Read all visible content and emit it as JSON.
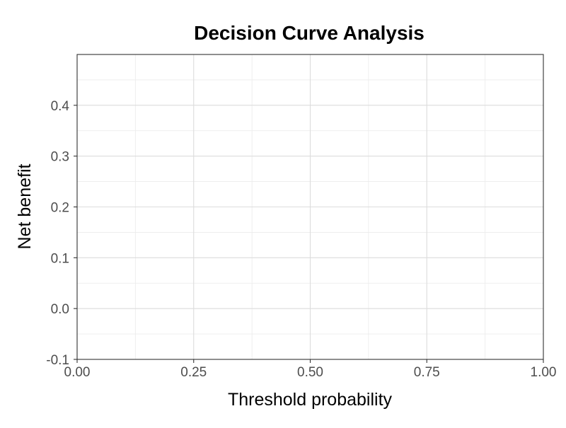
{
  "chart_data": {
    "type": "line",
    "title": "Decision Curve Analysis",
    "xlabel": "Threshold probability",
    "ylabel": "Net benefit",
    "xlim": [
      0,
      1
    ],
    "ylim": [
      -0.1,
      0.5
    ],
    "x_ticks": [
      0,
      0.25,
      0.5,
      0.75,
      1
    ],
    "x_tick_labels": [
      "0.00",
      "0.25",
      "0.50",
      "0.75",
      "1.00"
    ],
    "y_ticks": [
      -0.1,
      0,
      0.1,
      0.2,
      0.3,
      0.4
    ],
    "y_tick_labels": [
      "-0.1",
      "0.0",
      "0.1",
      "0.2",
      "0.3",
      "0.4"
    ],
    "x_minor_ticks": [
      0.125,
      0.375,
      0.625,
      0.875
    ],
    "y_minor_ticks": [
      -0.05,
      0.05,
      0.15,
      0.25,
      0.35,
      0.45
    ],
    "grid": true,
    "series": []
  }
}
